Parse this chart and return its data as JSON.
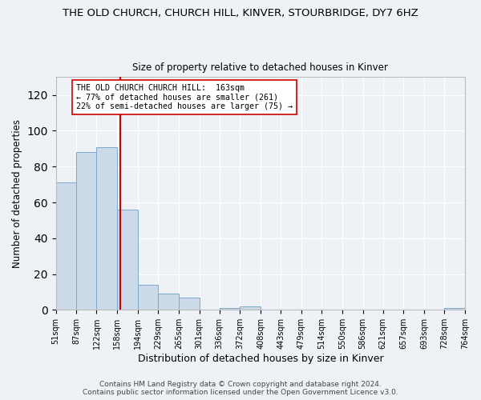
{
  "title": "THE OLD CHURCH, CHURCH HILL, KINVER, STOURBRIDGE, DY7 6HZ",
  "subtitle": "Size of property relative to detached houses in Kinver",
  "xlabel": "Distribution of detached houses by size in Kinver",
  "ylabel": "Number of detached properties",
  "bin_edges": [
    51,
    87,
    122,
    158,
    194,
    229,
    265,
    301,
    336,
    372,
    408,
    443,
    479,
    514,
    550,
    586,
    621,
    657,
    693,
    728,
    764
  ],
  "bin_counts": [
    71,
    88,
    91,
    56,
    14,
    9,
    7,
    0,
    1,
    2,
    0,
    0,
    0,
    0,
    0,
    0,
    0,
    0,
    0,
    1
  ],
  "tick_labels": [
    "51sqm",
    "87sqm",
    "122sqm",
    "158sqm",
    "194sqm",
    "229sqm",
    "265sqm",
    "301sqm",
    "336sqm",
    "372sqm",
    "408sqm",
    "443sqm",
    "479sqm",
    "514sqm",
    "550sqm",
    "586sqm",
    "621sqm",
    "657sqm",
    "693sqm",
    "728sqm",
    "764sqm"
  ],
  "property_line_x": 163,
  "bar_color": "#ccd9e8",
  "bar_edge_color": "#7aaac8",
  "line_color": "#cc0000",
  "annotation_text": "THE OLD CHURCH CHURCH HILL:  163sqm\n← 77% of detached houses are smaller (261)\n22% of semi-detached houses are larger (75) →",
  "ylim": [
    0,
    130
  ],
  "yticks": [
    0,
    20,
    40,
    60,
    80,
    100,
    120
  ],
  "footer": "Contains HM Land Registry data © Crown copyright and database right 2024.\nContains public sector information licensed under the Open Government Licence v3.0.",
  "background_color": "#eef2f7",
  "grid_color": "#ffffff"
}
